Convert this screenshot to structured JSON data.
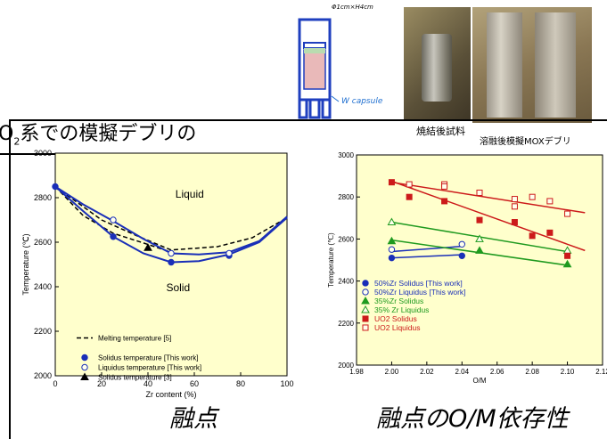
{
  "slide": {
    "title_prefix": "O",
    "title_sub": "2",
    "title_main": "系での模擬デブリの",
    "caption_left": "融点",
    "caption_right": "融点のO/M依存性"
  },
  "capsule": {
    "dimension_label": "Φ1cm×H4cm",
    "label": "W capsule"
  },
  "photos": {
    "sintered_label": "焼結後試料",
    "melted_label": "溶融後模擬MOXデブリ"
  },
  "chart_data": [
    {
      "type": "scatter",
      "title": "",
      "xlabel": "Zr content (%)",
      "ylabel": "Temperature (℃)",
      "xlim": [
        0,
        100
      ],
      "ylim": [
        2000,
        3000
      ],
      "xticks": [
        0,
        20,
        40,
        60,
        80,
        100
      ],
      "yticks": [
        2000,
        2200,
        2400,
        2600,
        2800,
        3000
      ],
      "grid": false,
      "legend_position": "bottom-left",
      "region_labels": [
        "Liquid",
        "Solid"
      ],
      "series": [
        {
          "name": "Melting temperature [5]",
          "style": "dashed-line",
          "color": "#000000",
          "x": [
            0,
            25,
            50,
            75,
            100
          ],
          "y": [
            2850,
            2660,
            2560,
            2570,
            2710
          ]
        },
        {
          "name": "Solidus temperature [This work]",
          "style": "filled-circle",
          "color": "#1a2fb8",
          "x": [
            0,
            25,
            50,
            75
          ],
          "y": [
            2850,
            2625,
            2510,
            2540
          ]
        },
        {
          "name": "Liquidus temperature [This work]",
          "style": "open-circle",
          "color": "#1a2fb8",
          "x": [
            25,
            50,
            75
          ],
          "y": [
            2700,
            2550,
            2550
          ]
        },
        {
          "name": "Solidus temperature [3]",
          "style": "filled-triangle",
          "color": "#000000",
          "x": [
            40
          ],
          "y": [
            2575
          ]
        }
      ],
      "fit_curves_color": "#1a2fb8"
    },
    {
      "type": "scatter",
      "title": "",
      "xlabel": "O/M",
      "ylabel": "Temperature (℃)",
      "xlim": [
        1.98,
        2.12
      ],
      "ylim": [
        2000,
        3000
      ],
      "xticks": [
        "1.98",
        "2.00",
        "2.02",
        "2.04",
        "2.06",
        "2.08",
        "2.10",
        "2.12"
      ],
      "yticks": [
        2000,
        2200,
        2400,
        2600,
        2800,
        3000
      ],
      "grid": false,
      "legend_position": "bottom-left",
      "series": [
        {
          "name": "50%Zr Solidus [This work]",
          "marker": "filled-circle",
          "color": "#1a2fb8",
          "x": [
            2.0,
            2.04
          ],
          "y": [
            2510,
            2520
          ],
          "fit": [
            [
              2.0,
              2510
            ],
            [
              2.04,
              2525
            ]
          ]
        },
        {
          "name": "50%Zr Liquidus [This work]",
          "marker": "open-circle",
          "color": "#1a2fb8",
          "x": [
            2.0,
            2.04
          ],
          "y": [
            2550,
            2575
          ],
          "fit": [
            [
              2.0,
              2540
            ],
            [
              2.04,
              2565
            ]
          ]
        },
        {
          "name": "35%Zr Solidus",
          "marker": "filled-triangle",
          "color": "#1f9a1f",
          "x": [
            2.0,
            2.05,
            2.1
          ],
          "y": [
            2590,
            2545,
            2480
          ],
          "fit": [
            [
              2.0,
              2595
            ],
            [
              2.1,
              2475
            ]
          ]
        },
        {
          "name": "35% Zr Liquidus",
          "marker": "open-triangle",
          "color": "#1f9a1f",
          "x": [
            2.0,
            2.05,
            2.1
          ],
          "y": [
            2680,
            2600,
            2545
          ],
          "fit": [
            [
              2.0,
              2680
            ],
            [
              2.1,
              2540
            ]
          ]
        },
        {
          "name": "UO2 Solidus",
          "marker": "filled-square",
          "color": "#cc1a1a",
          "x": [
            2.0,
            2.01,
            2.03,
            2.05,
            2.07,
            2.08,
            2.09,
            2.1
          ],
          "y": [
            2870,
            2800,
            2780,
            2690,
            2680,
            2615,
            2630,
            2520
          ],
          "fit": [
            [
              2.0,
              2875
            ],
            [
              2.11,
              2545
            ]
          ]
        },
        {
          "name": "UO2 Liquidus",
          "marker": "open-square",
          "color": "#cc1a1a",
          "x": [
            2.01,
            2.03,
            2.05,
            2.07,
            2.08,
            2.09,
            2.1,
            2.07,
            2.03
          ],
          "y": [
            2860,
            2860,
            2820,
            2790,
            2800,
            2780,
            2720,
            2755,
            2850
          ],
          "fit": [
            [
              2.0,
              2870
            ],
            [
              2.11,
              2725
            ]
          ]
        }
      ]
    }
  ]
}
